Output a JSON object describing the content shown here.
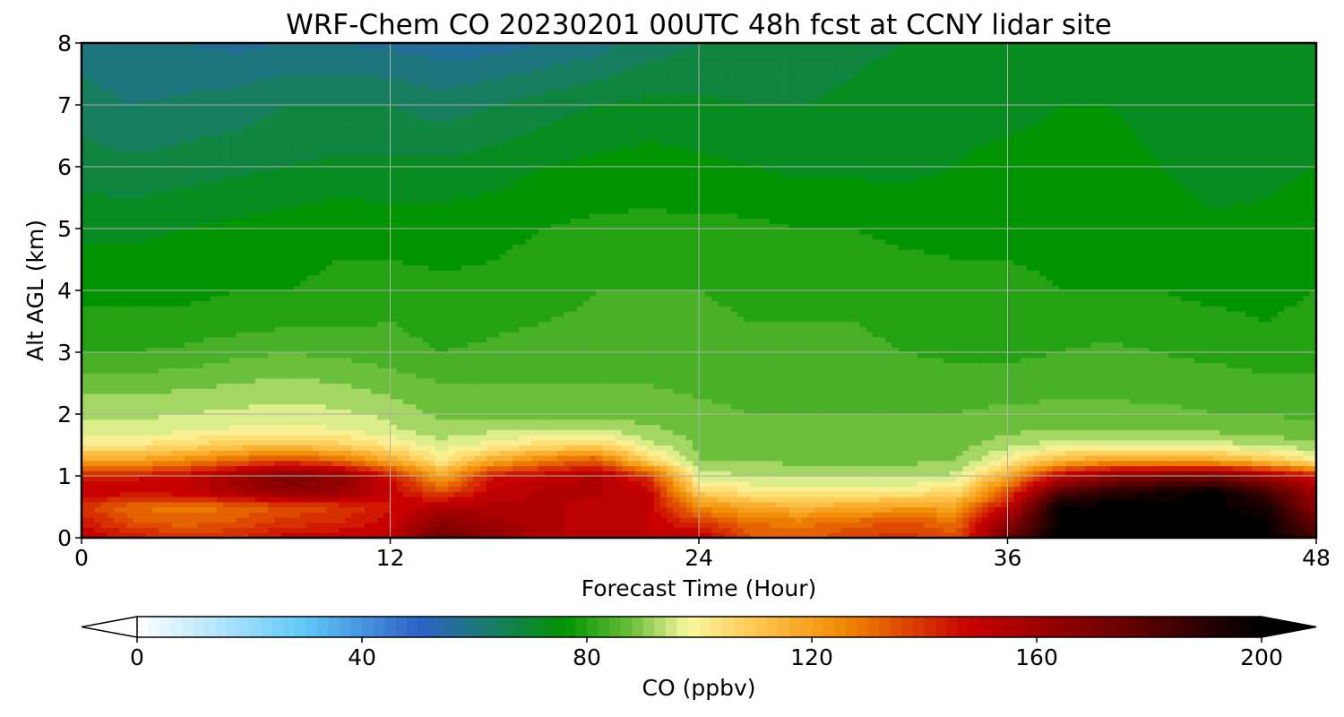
{
  "chart_data": {
    "type": "heatmap",
    "title": "WRF-Chem CO  20230201 00UTC 48h fcst at CCNY lidar site",
    "xlabel": "Forecast Time (Hour)",
    "ylabel": "Alt AGL (km)",
    "xlim": [
      0,
      48
    ],
    "ylim": [
      0,
      8
    ],
    "xticks": [
      "0",
      "12",
      "24",
      "36",
      "48"
    ],
    "yticks": [
      "0",
      "1",
      "2",
      "3",
      "4",
      "5",
      "6",
      "7",
      "8"
    ],
    "grid": true,
    "z_units": "ppbv",
    "colorbar": {
      "label": "CO  (ppbv)",
      "orientation": "horizontal",
      "extend": "both",
      "vmin": 0,
      "vmax": 200,
      "ticks": [
        "0",
        "40",
        "80",
        "120",
        "160",
        "200"
      ],
      "colors": [
        {
          "value": 0,
          "color": "#ffffff"
        },
        {
          "value": 30,
          "color": "#5ec8f8"
        },
        {
          "value": 50,
          "color": "#2e62c8"
        },
        {
          "value": 62,
          "color": "#1a7a6e"
        },
        {
          "value": 76,
          "color": "#009400"
        },
        {
          "value": 88,
          "color": "#6cbf3a"
        },
        {
          "value": 98,
          "color": "#f8f8a0"
        },
        {
          "value": 110,
          "color": "#ffc850"
        },
        {
          "value": 126,
          "color": "#f08800"
        },
        {
          "value": 148,
          "color": "#c80000"
        },
        {
          "value": 175,
          "color": "#6a0000"
        },
        {
          "value": 200,
          "color": "#000000"
        }
      ]
    },
    "x": [
      0,
      2,
      4,
      6,
      8,
      10,
      12,
      14,
      16,
      18,
      20,
      22,
      24,
      26,
      28,
      30,
      32,
      34,
      36,
      38,
      40,
      42,
      44,
      46,
      48
    ],
    "y": [
      0,
      0.25,
      0.5,
      0.75,
      1.0,
      1.25,
      1.5,
      1.75,
      2.0,
      2.5,
      3.0,
      3.5,
      4.0,
      5.0,
      6.0,
      7.0,
      8.0
    ],
    "z": [
      [
        150,
        145,
        140,
        142,
        148,
        150,
        152,
        175,
        165,
        155,
        152,
        150,
        152,
        135,
        132,
        138,
        140,
        135,
        175,
        200,
        200,
        200,
        200,
        200,
        185
      ],
      [
        145,
        135,
        132,
        135,
        140,
        142,
        148,
        165,
        160,
        155,
        152,
        150,
        140,
        130,
        128,
        132,
        135,
        130,
        165,
        200,
        200,
        200,
        200,
        200,
        175
      ],
      [
        140,
        130,
        128,
        130,
        135,
        138,
        145,
        155,
        155,
        155,
        152,
        150,
        125,
        118,
        115,
        118,
        120,
        120,
        150,
        200,
        200,
        200,
        200,
        195,
        165
      ],
      [
        150,
        148,
        150,
        158,
        165,
        162,
        150,
        135,
        150,
        155,
        155,
        150,
        108,
        102,
        100,
        100,
        102,
        105,
        135,
        180,
        190,
        195,
        200,
        185,
        160
      ],
      [
        145,
        145,
        148,
        160,
        170,
        165,
        145,
        118,
        145,
        150,
        155,
        140,
        96,
        94,
        93,
        93,
        93,
        95,
        118,
        150,
        165,
        170,
        172,
        160,
        145
      ],
      [
        120,
        120,
        125,
        132,
        138,
        132,
        118,
        102,
        118,
        128,
        135,
        108,
        90,
        90,
        89,
        89,
        89,
        90,
        100,
        115,
        120,
        122,
        118,
        112,
        102
      ],
      [
        102,
        102,
        105,
        110,
        112,
        108,
        102,
        96,
        100,
        105,
        108,
        96,
        89,
        88,
        88,
        88,
        88,
        88,
        93,
        96,
        97,
        97,
        96,
        93,
        91
      ],
      [
        96,
        96,
        97,
        99,
        100,
        98,
        95,
        91,
        93,
        94,
        94,
        91,
        88,
        87,
        87,
        87,
        87,
        87,
        89,
        90,
        90,
        90,
        89,
        88,
        87
      ],
      [
        93,
        93,
        94,
        95,
        96,
        95,
        93,
        89,
        89,
        89,
        89,
        88,
        87,
        86,
        86,
        86,
        86,
        86,
        87,
        87,
        87,
        87,
        86,
        86,
        85
      ],
      [
        88,
        88,
        89,
        90,
        91,
        90,
        88,
        86,
        86,
        86,
        86,
        86,
        85,
        85,
        85,
        85,
        85,
        84,
        84,
        85,
        85,
        84,
        84,
        83,
        83
      ],
      [
        82,
        82,
        83,
        85,
        86,
        85,
        84,
        82,
        83,
        84,
        84,
        84,
        84,
        83,
        83,
        83,
        82,
        81,
        81,
        82,
        83,
        82,
        81,
        80,
        80
      ],
      [
        79,
        79,
        79,
        80,
        81,
        81,
        82,
        80,
        81,
        82,
        83,
        83,
        83,
        82,
        82,
        82,
        81,
        80,
        80,
        80,
        80,
        79,
        79,
        78,
        79
      ],
      [
        77,
        77,
        77,
        78,
        78,
        79,
        80,
        79,
        79,
        80,
        82,
        82,
        82,
        81,
        81,
        81,
        80,
        79,
        79,
        78,
        78,
        78,
        77,
        77,
        78
      ],
      [
        73,
        73,
        74,
        75,
        76,
        77,
        76,
        76,
        77,
        78,
        79,
        79,
        79,
        79,
        78,
        78,
        77,
        77,
        77,
        77,
        77,
        76,
        75,
        75,
        76
      ],
      [
        68,
        67,
        68,
        69,
        70,
        71,
        71,
        71,
        72,
        74,
        75,
        76,
        75,
        74,
        73,
        73,
        73,
        74,
        75,
        75,
        75,
        74,
        72,
        73,
        74
      ],
      [
        64,
        62,
        63,
        64,
        66,
        66,
        66,
        64,
        66,
        68,
        70,
        71,
        71,
        70,
        70,
        71,
        72,
        73,
        73,
        74,
        74,
        73,
        72,
        73,
        73
      ],
      [
        60,
        58,
        58,
        57,
        58,
        58,
        57,
        56,
        56,
        58,
        60,
        64,
        66,
        66,
        67,
        69,
        70,
        72,
        72,
        73,
        73,
        72,
        72,
        73,
        72
      ]
    ]
  }
}
